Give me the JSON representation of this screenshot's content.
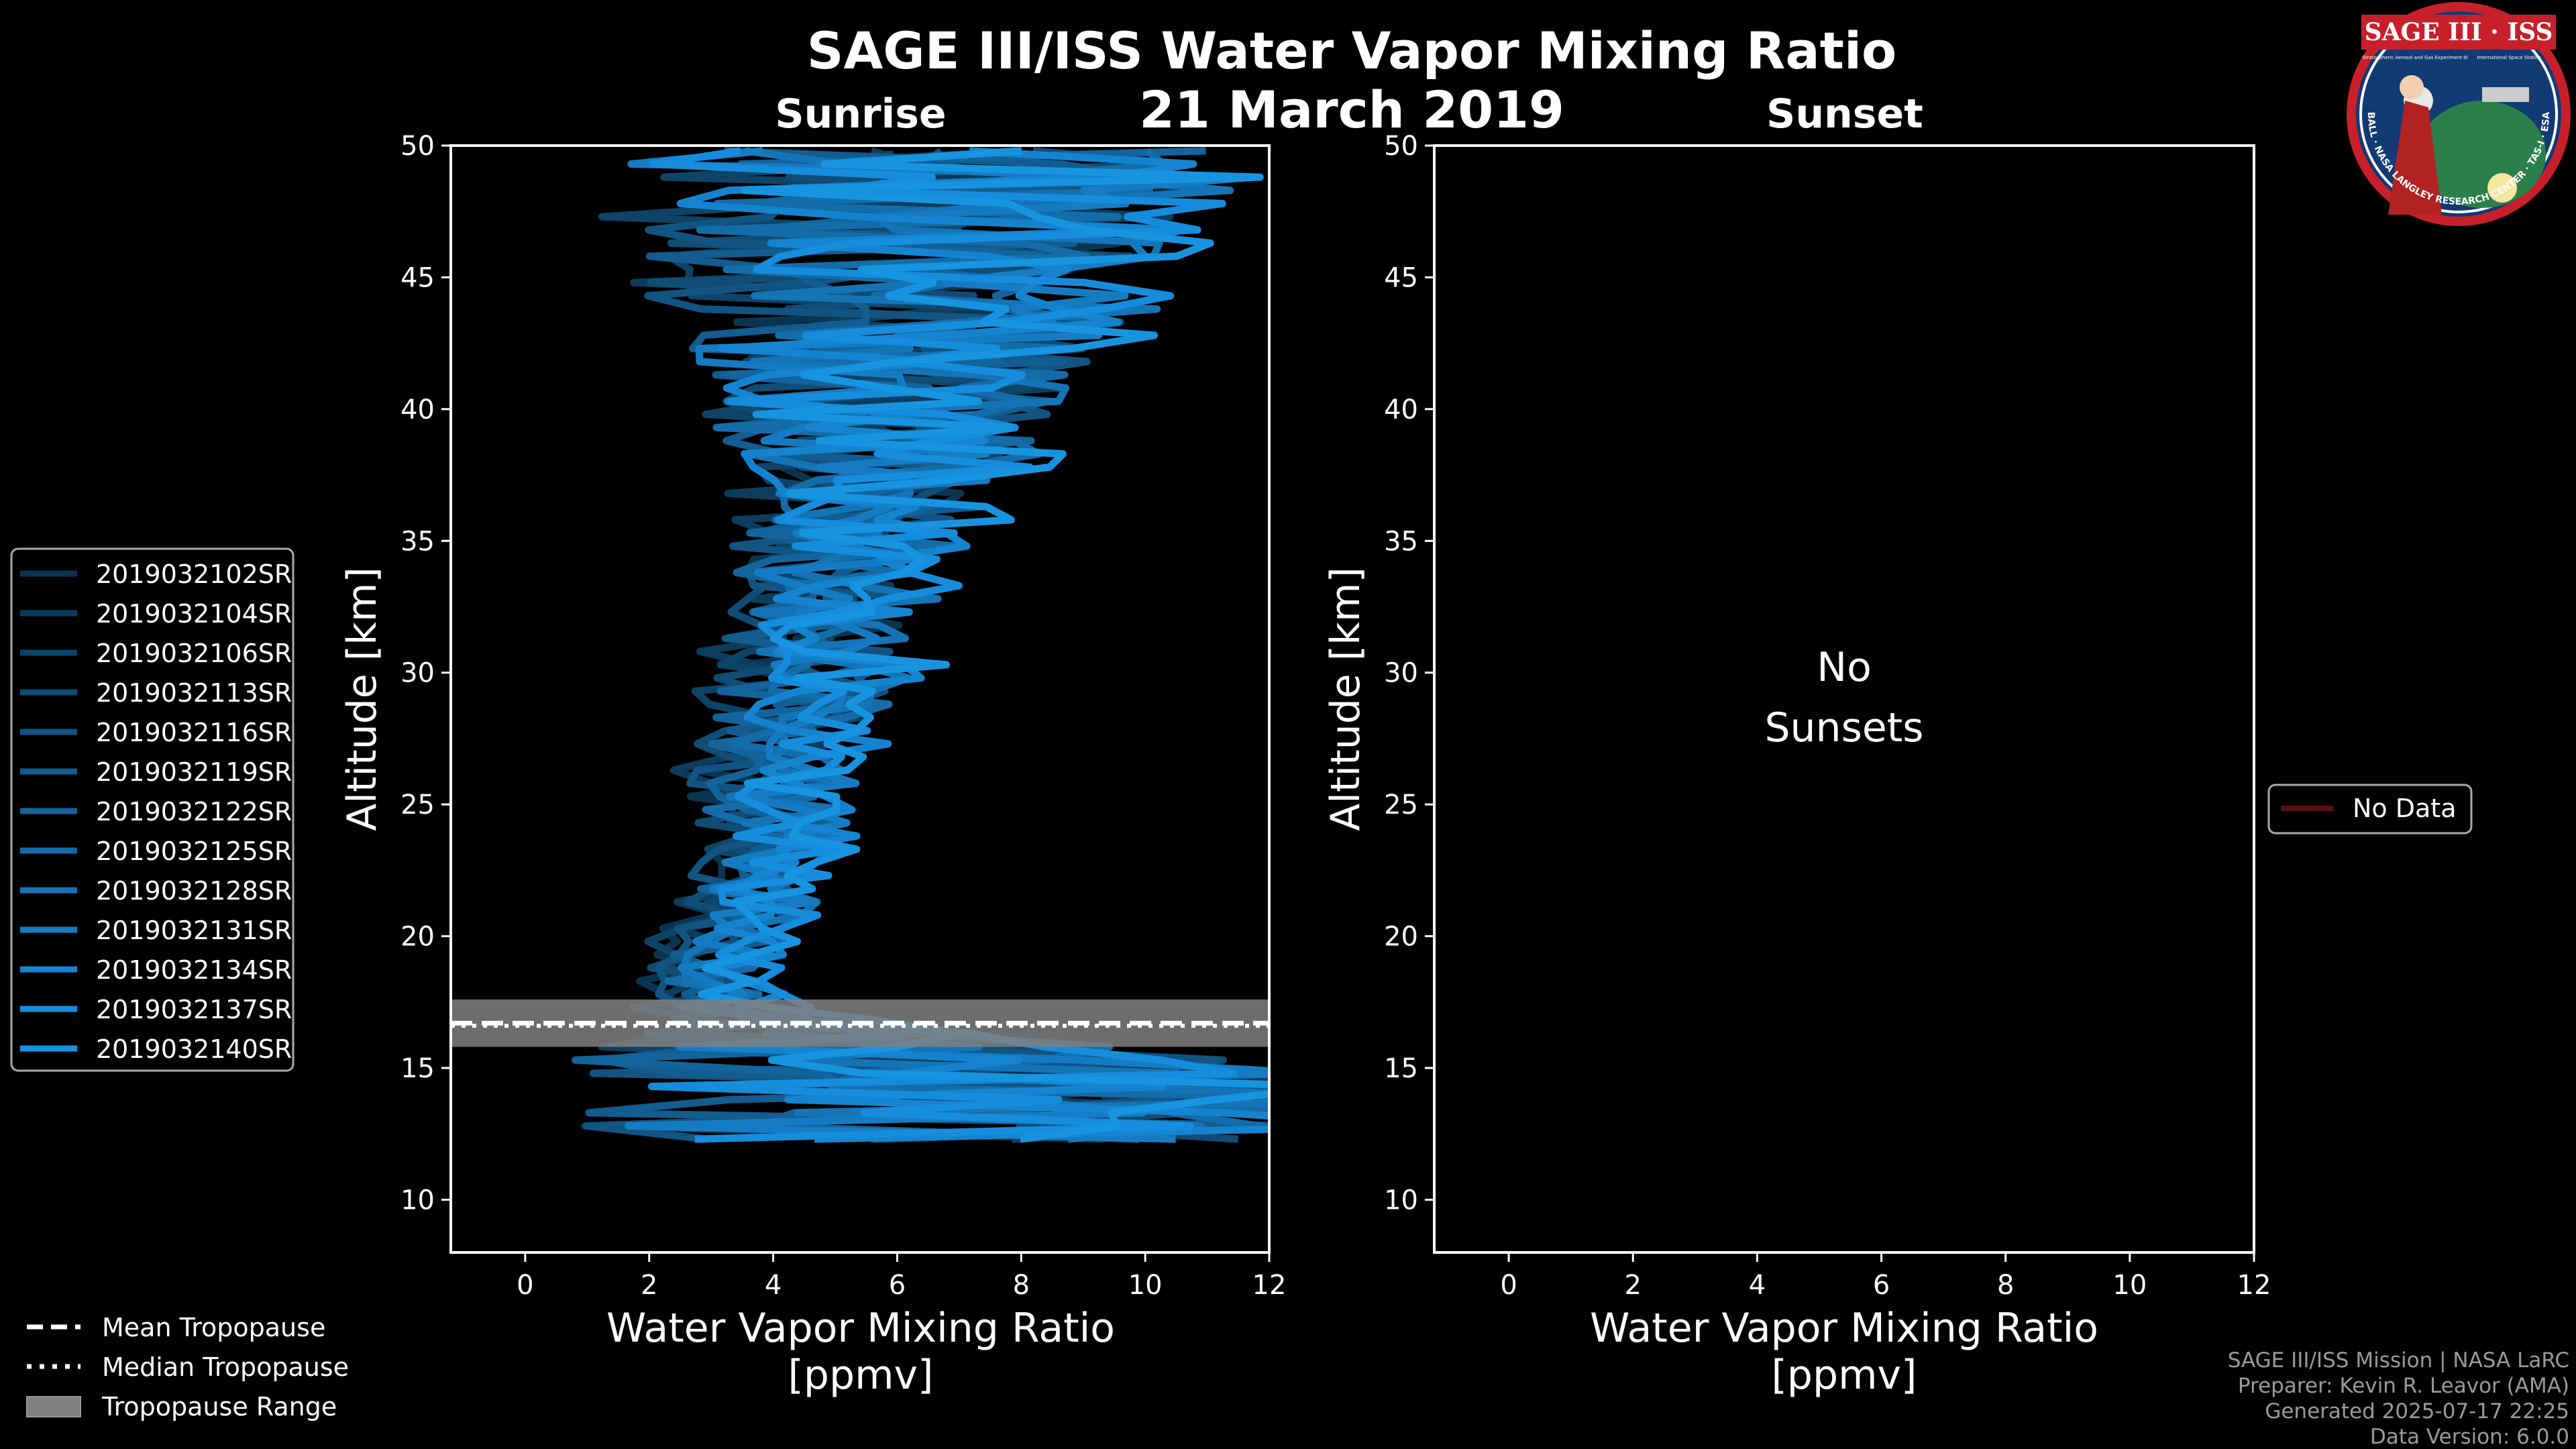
{
  "figure": {
    "title": "SAGE III/ISS Water Vapor Mixing Ratio",
    "date": "21 March 2019",
    "panel_left_title": "Sunrise",
    "panel_right_title": "Sunset",
    "no_data_line1": "No",
    "no_data_line2": "Sunsets",
    "logo_title": "SAGE III · ISS",
    "logo_sub_left": "Stratospheric Aerosol and Gas Experiment III",
    "logo_sub_right": "International Space Station",
    "logo_ring": "BALL · NASA LANGLEY RESEARCH CENTER · TAS-I · ESA",
    "credits": {
      "mission": "SAGE III/ISS Mission | NASA LaRC",
      "preparer": "Preparer: Kevin R. Leavor (AMA)",
      "generated": "Generated 2025-07-17 22:25",
      "version": "Data Version: 6.0.0"
    }
  },
  "chart_data": [
    {
      "type": "line",
      "panel": "Sunrise",
      "xlabel_line1": "Water Vapor Mixing Ratio",
      "xlabel_line2": "[ppmv]",
      "ylabel": "Altitude [km]",
      "xlim": [
        -1.2,
        12
      ],
      "ylim": [
        8,
        50
      ],
      "xticks": [
        0,
        2,
        4,
        6,
        8,
        10,
        12
      ],
      "yticks": [
        10,
        15,
        20,
        25,
        30,
        35,
        40,
        45,
        50
      ],
      "series_names": [
        "2019032102SR",
        "2019032104SR",
        "2019032106SR",
        "2019032113SR",
        "2019032116SR",
        "2019032119SR",
        "2019032122SR",
        "2019032125SR",
        "2019032128SR",
        "2019032131SR",
        "2019032134SR",
        "2019032137SR",
        "2019032140SR"
      ],
      "series_colors": [
        "#0a3550",
        "#0c3d5c",
        "#0e4468",
        "#104c75",
        "#115482",
        "#125c8f",
        "#13649c",
        "#146ca9",
        "#1474b6",
        "#157cc3",
        "#1584d0",
        "#168cdd",
        "#1794e0"
      ],
      "series_x_jitter": [
        0.2,
        0.3,
        0.4,
        0.3,
        0.35,
        0.25,
        0.4,
        0.3,
        0.35,
        0.3,
        0.4,
        0.3,
        0.35
      ],
      "profile_envelope": {
        "altitude_km": [
          12.0,
          13.0,
          14.0,
          15.0,
          15.8,
          16.5,
          17.5,
          18.5,
          19.5,
          20.5,
          22,
          24,
          26,
          28,
          30,
          32,
          34,
          36,
          38,
          40,
          42,
          44,
          46,
          48,
          49.5
        ],
        "center_ppmv": [
          9.0,
          8.5,
          8.0,
          7.0,
          5.5,
          4.0,
          3.0,
          2.9,
          3.1,
          3.5,
          3.7,
          3.9,
          4.1,
          4.4,
          4.7,
          4.9,
          5.2,
          5.5,
          5.6,
          5.8,
          6.0,
          6.2,
          6.4,
          6.5,
          6.6
        ],
        "spread_ppmv": [
          8.0,
          7.5,
          7.0,
          6.5,
          5.0,
          2.0,
          0.8,
          0.7,
          0.8,
          0.9,
          1.0,
          1.1,
          1.3,
          1.4,
          1.5,
          1.6,
          1.8,
          2.0,
          2.5,
          3.0,
          3.5,
          4.0,
          4.5,
          5.0,
          5.5
        ]
      },
      "tropopause": {
        "mean_km": 16.7,
        "median_km": 16.6,
        "range_km": [
          15.8,
          17.6
        ]
      },
      "legend": [
        "2019032102SR",
        "2019032104SR",
        "2019032106SR",
        "2019032113SR",
        "2019032116SR",
        "2019032119SR",
        "2019032122SR",
        "2019032125SR",
        "2019032128SR",
        "2019032131SR",
        "2019032134SR",
        "2019032137SR",
        "2019032140SR"
      ],
      "tropopause_legend": [
        "Mean Tropopause",
        "Median Tropopause",
        "Tropopause Range"
      ]
    },
    {
      "type": "line",
      "panel": "Sunset",
      "xlabel_line1": "Water Vapor Mixing Ratio",
      "xlabel_line2": "[ppmv]",
      "ylabel": "Altitude [km]",
      "xlim": [
        -1.2,
        12
      ],
      "ylim": [
        8,
        50
      ],
      "xticks": [
        0,
        2,
        4,
        6,
        8,
        10,
        12
      ],
      "yticks": [
        10,
        15,
        20,
        25,
        30,
        35,
        40,
        45,
        50
      ],
      "series": [],
      "legend": [
        "No Data"
      ],
      "legend_color": "#5a1010"
    }
  ],
  "colors": {
    "background": "#000000",
    "axes": "#ffffff",
    "tropopause_band": "#808080"
  }
}
